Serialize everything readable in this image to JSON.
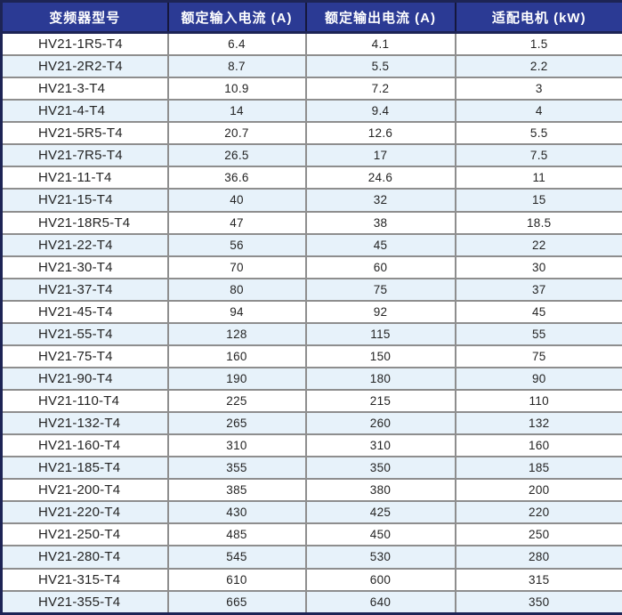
{
  "colors": {
    "header_bg": "#2b3a94",
    "header_text": "#ffffff",
    "outer_border": "#1d2455",
    "header_divider": "#15173c",
    "grid_line": "#8e8e8e",
    "alt_row_bg": "#e7f2fa",
    "body_text": "#242424"
  },
  "table": {
    "headers": [
      "变频器型号",
      "额定输入电流 (A)",
      "额定输出电流 (A)",
      "适配电机 (kW)"
    ],
    "rows": [
      [
        "HV21-1R5-T4",
        "6.4",
        "4.1",
        "1.5"
      ],
      [
        "HV21-2R2-T4",
        "8.7",
        "5.5",
        "2.2"
      ],
      [
        "HV21-3-T4",
        "10.9",
        "7.2",
        "3"
      ],
      [
        "HV21-4-T4",
        "14",
        "9.4",
        "4"
      ],
      [
        "HV21-5R5-T4",
        "20.7",
        "12.6",
        "5.5"
      ],
      [
        "HV21-7R5-T4",
        "26.5",
        "17",
        "7.5"
      ],
      [
        "HV21-11-T4",
        "36.6",
        "24.6",
        "11"
      ],
      [
        "HV21-15-T4",
        "40",
        "32",
        "15"
      ],
      [
        "HV21-18R5-T4",
        "47",
        "38",
        "18.5"
      ],
      [
        "HV21-22-T4",
        "56",
        "45",
        "22"
      ],
      [
        "HV21-30-T4",
        "70",
        "60",
        "30"
      ],
      [
        "HV21-37-T4",
        "80",
        "75",
        "37"
      ],
      [
        "HV21-45-T4",
        "94",
        "92",
        "45"
      ],
      [
        "HV21-55-T4",
        "128",
        "115",
        "55"
      ],
      [
        "HV21-75-T4",
        "160",
        "150",
        "75"
      ],
      [
        "HV21-90-T4",
        "190",
        "180",
        "90"
      ],
      [
        "HV21-110-T4",
        "225",
        "215",
        "110"
      ],
      [
        "HV21-132-T4",
        "265",
        "260",
        "132"
      ],
      [
        "HV21-160-T4",
        "310",
        "310",
        "160"
      ],
      [
        "HV21-185-T4",
        "355",
        "350",
        "185"
      ],
      [
        "HV21-200-T4",
        "385",
        "380",
        "200"
      ],
      [
        "HV21-220-T4",
        "430",
        "425",
        "220"
      ],
      [
        "HV21-250-T4",
        "485",
        "450",
        "250"
      ],
      [
        "HV21-280-T4",
        "545",
        "530",
        "280"
      ],
      [
        "HV21-315-T4",
        "610",
        "600",
        "315"
      ],
      [
        "HV21-355-T4",
        "665",
        "640",
        "350"
      ]
    ]
  },
  "chart_data": {
    "type": "table",
    "title": "",
    "columns": [
      "变频器型号",
      "额定输入电流 (A)",
      "额定输出电流 (A)",
      "适配电机 (kW)"
    ],
    "rows": [
      [
        "HV21-1R5-T4",
        6.4,
        4.1,
        1.5
      ],
      [
        "HV21-2R2-T4",
        8.7,
        5.5,
        2.2
      ],
      [
        "HV21-3-T4",
        10.9,
        7.2,
        3
      ],
      [
        "HV21-4-T4",
        14,
        9.4,
        4
      ],
      [
        "HV21-5R5-T4",
        20.7,
        12.6,
        5.5
      ],
      [
        "HV21-7R5-T4",
        26.5,
        17,
        7.5
      ],
      [
        "HV21-11-T4",
        36.6,
        24.6,
        11
      ],
      [
        "HV21-15-T4",
        40,
        32,
        15
      ],
      [
        "HV21-18R5-T4",
        47,
        38,
        18.5
      ],
      [
        "HV21-22-T4",
        56,
        45,
        22
      ],
      [
        "HV21-30-T4",
        70,
        60,
        30
      ],
      [
        "HV21-37-T4",
        80,
        75,
        37
      ],
      [
        "HV21-45-T4",
        94,
        92,
        45
      ],
      [
        "HV21-55-T4",
        128,
        115,
        55
      ],
      [
        "HV21-75-T4",
        160,
        150,
        75
      ],
      [
        "HV21-90-T4",
        190,
        180,
        90
      ],
      [
        "HV21-110-T4",
        225,
        215,
        110
      ],
      [
        "HV21-132-T4",
        265,
        260,
        132
      ],
      [
        "HV21-160-T4",
        310,
        310,
        160
      ],
      [
        "HV21-185-T4",
        355,
        350,
        185
      ],
      [
        "HV21-200-T4",
        385,
        380,
        200
      ],
      [
        "HV21-220-T4",
        430,
        425,
        220
      ],
      [
        "HV21-250-T4",
        485,
        450,
        250
      ],
      [
        "HV21-280-T4",
        545,
        530,
        280
      ],
      [
        "HV21-315-T4",
        610,
        600,
        315
      ],
      [
        "HV21-355-T4",
        665,
        640,
        350
      ]
    ],
    "layout": {
      "header_style": "navy background, white bold text",
      "row_striping": "white / light blue alternating",
      "first_column_align": "left",
      "value_columns_align": "center"
    }
  }
}
